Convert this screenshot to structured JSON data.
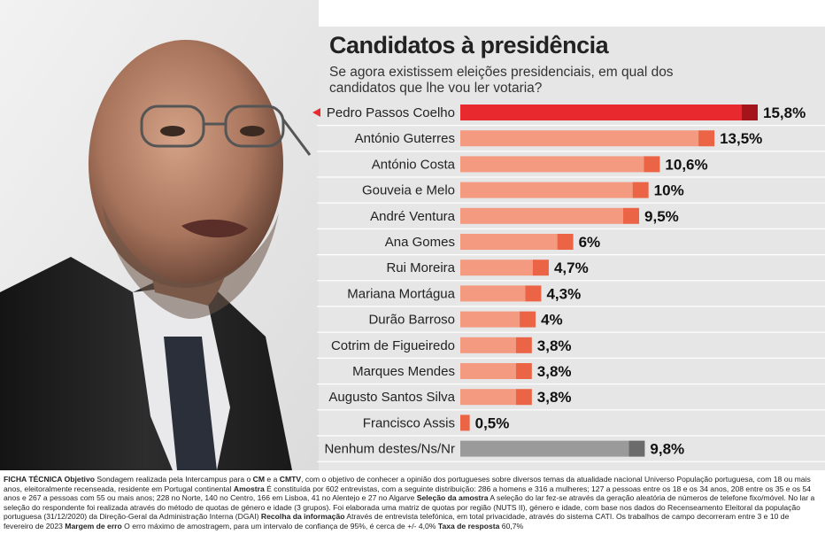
{
  "colors": {
    "highlight": "#e8292e",
    "highlight_tip": "#a3141b",
    "bar": "#f39a80",
    "bar_tip": "#ec6446",
    "none_bar": "#9a9a9a",
    "none_tip": "#6b6b6b",
    "panel": "#e6e6e6"
  },
  "photo": {
    "icon": "portrait-photo"
  },
  "header": {
    "title": "Candidatos à presidência",
    "subtitle": "Se agora existissem eleições presidenciais, em qual dos candidatos que lhe vou ler votaria?"
  },
  "chart_data": {
    "type": "bar",
    "orientation": "horizontal",
    "title": "Candidatos à presidência",
    "categories": [
      "Pedro Passos Coelho",
      "António Guterres",
      "António Costa",
      "Gouveia e Melo",
      "André Ventura",
      "Ana Gomes",
      "Rui Moreira",
      "Mariana Mortágua",
      "Durão Barroso",
      "Cotrim de Figueiredo",
      "Marques Mendes",
      "Augusto Santos Silva",
      "Francisco Assis",
      "Nenhum destes/Ns/Nr"
    ],
    "values": [
      15.8,
      13.5,
      10.6,
      10,
      9.5,
      6,
      4.7,
      4.3,
      4,
      3.8,
      3.8,
      3.8,
      0.5,
      9.8
    ],
    "value_labels": [
      "15,8%",
      "13,5%",
      "10,6%",
      "10%",
      "9,5%",
      "6%",
      "4,7%",
      "4,3%",
      "4%",
      "3,8%",
      "3,8%",
      "3,8%",
      "0,5%",
      "9,8%"
    ],
    "highlighted": "Pedro Passos Coelho",
    "unit": "%",
    "xlim": [
      0,
      15.8
    ]
  },
  "footer": {
    "segments": [
      {
        "text": "FICHA TÉCNICA ",
        "bold": true
      },
      {
        "text": "Objetivo ",
        "bold": true
      },
      {
        "text": "Sondagem realizada pela Intercampus para o ",
        "bold": false
      },
      {
        "text": "CM",
        "bold": true
      },
      {
        "text": " e a ",
        "bold": false
      },
      {
        "text": "CMTV",
        "bold": true
      },
      {
        "text": ", com o objetivo de conhecer a opinião dos portugueses sobre diversos temas da atualidade nacional Universo População portuguesa, com 18 ou mais anos, eleitoralmente recenseada, residente em Portugal continental ",
        "bold": false
      },
      {
        "text": "Amostra",
        "bold": true
      },
      {
        "text": " É constituída por 602 entrevistas, com a seguinte distribuição: 286 a homens e 316 a mulheres; 127 a pessoas entre os 18 e os 34 anos, 208 entre os 35 e os 54 anos e 267 a pessoas com 55 ou mais anos; 228 no Norte, 140 no Centro, 166 em Lisboa, 41 no Alentejo e 27 no Algarve ",
        "bold": false
      },
      {
        "text": "Seleção da amostra",
        "bold": true
      },
      {
        "text": " A seleção do lar fez-se através da geração aleatória de números de telefone fixo/móvel. No lar a seleção do respondente foi realizada através do método de quotas de género e idade (3 grupos). Foi elaborada uma matriz de quotas por região (NUTS II), género e idade, com base nos dados do Recenseamento Eleitoral da população portuguesa (31/12/2020) da Direção-Geral da Administração Interna (DGAI) ",
        "bold": false
      },
      {
        "text": "Recolha da informação",
        "bold": true
      },
      {
        "text": " Através de entrevista telefónica, em total privacidade, através do sistema CATI. Os trabalhos de campo decorreram entre 3 e 10 de fevereiro de 2023 ",
        "bold": false
      },
      {
        "text": "Margem de erro",
        "bold": true
      },
      {
        "text": " O erro máximo de amostragem, para um intervalo de confiança de 95%, é cerca de +/- 4,0% ",
        "bold": false
      },
      {
        "text": "Taxa de resposta",
        "bold": true
      },
      {
        "text": " 60,7%",
        "bold": false
      }
    ]
  }
}
